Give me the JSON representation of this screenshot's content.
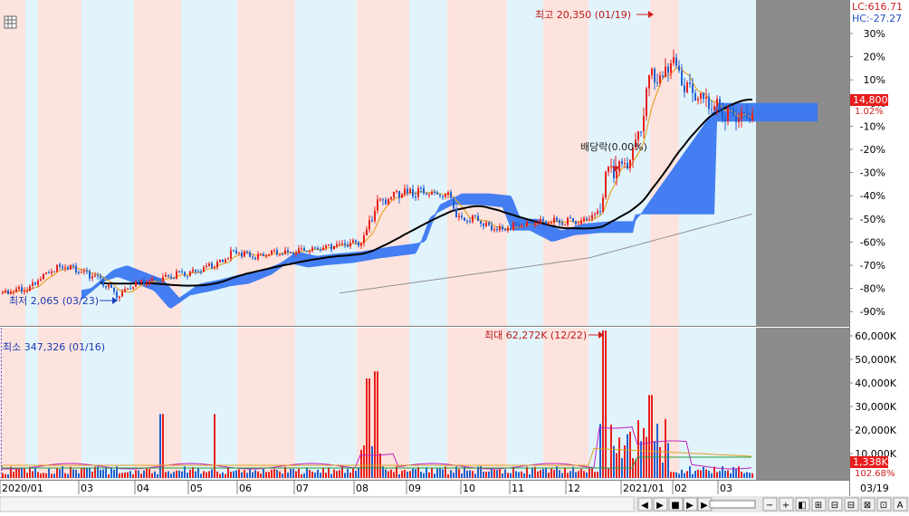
{
  "toolbar": {
    "grid_icon": "grid-icon"
  },
  "price_panel": {
    "axis_ticks": [
      "30%",
      "20%",
      "10%",
      "0%",
      "-10%",
      "-20%",
      "-30%",
      "-40%",
      "-50%",
      "-60%",
      "-70%",
      "-80%",
      "-90%"
    ],
    "lc_label": "LC:616.71",
    "hc_label": "HC:-27.27",
    "current_price": "14,800",
    "current_pct": "1.02%",
    "max_label": "최고 20,350 (01/19)",
    "min_label": "최저 2,065 (03/23)",
    "ex_dividend_label": "배당락(0.00%)"
  },
  "volume_panel": {
    "axis_ticks": [
      "60,000K",
      "50,000K",
      "40,000K",
      "30,000K",
      "20,000K",
      "10,000K"
    ],
    "max_label": "최대 62,272K (12/22)",
    "min_label": "최소 347,326 (01/16)",
    "current_volume": "1,338K",
    "current_pct": "102.68%"
  },
  "x_axis": {
    "labels": [
      "2020/01",
      "03",
      "04",
      "05",
      "06",
      "07",
      "08",
      "09",
      "10",
      "11",
      "12",
      "2021/01",
      "02",
      "03"
    ],
    "right_label": "03/19"
  },
  "bottom_bar": {
    "buttons": [
      "◀",
      "▶",
      "■",
      "▶",
      "▶",
      "−",
      "+",
      "◧",
      "⊞",
      "⊟",
      "⊟",
      "⊠",
      "⊡",
      "A"
    ]
  },
  "colors": {
    "up": "#e8201c",
    "down": "#2060d0",
    "cloud": "#3a78f2",
    "ma_short": "#e8a22a",
    "ma_long": "#000000",
    "ma_longer": "#909090",
    "band_light_red": "#fde3de",
    "band_light_blue": "#e2f4fb",
    "right_gray": "#8c8c8c",
    "price_box": "#e81c1c"
  },
  "chart_data": [
    {
      "type": "candlestick",
      "title": "",
      "yscale": "percent",
      "ylim": [
        -95,
        35
      ],
      "x": [
        "2020/01",
        "2020/02",
        "2020/03",
        "2020/04",
        "2020/05",
        "2020/06",
        "2020/07",
        "2020/08",
        "2020/09",
        "2020/10",
        "2020/11",
        "2020/12",
        "2021/01",
        "2021/02",
        "2021/03"
      ],
      "close_pct": [
        -82,
        -73,
        -84,
        -77,
        -71,
        -64,
        -61,
        -40,
        -39,
        -50,
        -52,
        -50,
        10,
        -3,
        -12
      ],
      "annotations": [
        {
          "text": "최고 20,350 (01/19)",
          "x": "2021/01/19",
          "value_pct": 33
        },
        {
          "text": "최저 2,065 (03/23)",
          "x": "2020/03/23",
          "value_pct": -85
        },
        {
          "text": "배당락(0.00%)",
          "x": "2020/12"
        }
      ],
      "last_price": 14800,
      "last_pct": 1.02
    },
    {
      "type": "bar",
      "title": "",
      "ylim": [
        0,
        62000
      ],
      "x": [
        "2020/01",
        "2020/02",
        "2020/03",
        "2020/04",
        "2020/05",
        "2020/06",
        "2020/07",
        "2020/08",
        "2020/09",
        "2020/10",
        "2020/11",
        "2020/12",
        "2021/01",
        "2021/02",
        "2021/03"
      ],
      "values_k": [
        3000,
        5000,
        5500,
        6000,
        4500,
        5000,
        5500,
        18000,
        6000,
        4000,
        4000,
        30000,
        25000,
        10000,
        4000
      ],
      "annotations": [
        {
          "text": "최대 62,272K (12/22)",
          "x": "2020/12/22",
          "value_k": 62272
        },
        {
          "text": "최소 347,326 (01/16)",
          "x": "2020/01/16"
        }
      ],
      "last_volume_k": 1338,
      "last_pct": 102.68
    }
  ]
}
